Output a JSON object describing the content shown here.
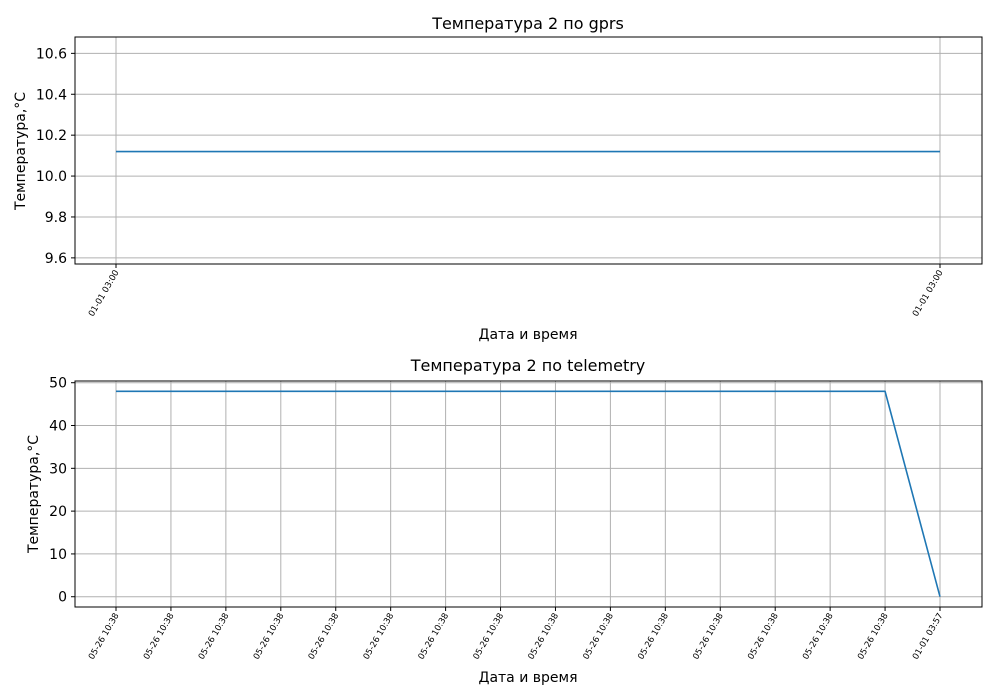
{
  "chart_data": [
    {
      "type": "line",
      "title": "Температура 2 по gprs",
      "xlabel": "Дата и время",
      "ylabel": "Температура,°C",
      "x": [
        "01-01 03:00",
        "01-01 03:00"
      ],
      "series": [
        {
          "values": [
            10.12,
            10.12
          ],
          "color": "#1f77b4"
        }
      ],
      "ylim": [
        9.57,
        10.68
      ],
      "yticks": [
        9.6,
        9.8,
        10.0,
        10.2,
        10.4,
        10.6
      ],
      "ytick_labels": [
        "9.6",
        "9.8",
        "10.0",
        "10.2",
        "10.4",
        "10.6"
      ],
      "grid": true,
      "legend": "none"
    },
    {
      "type": "line",
      "title": "Температура 2 по telemetry",
      "xlabel": "Дата и время",
      "ylabel": "Температура,°C",
      "x": [
        "05-26 10:38",
        "05-26 10:38",
        "05-26 10:38",
        "05-26 10:38",
        "05-26 10:38",
        "05-26 10:38",
        "05-26 10:38",
        "05-26 10:38",
        "05-26 10:38",
        "05-26 10:38",
        "05-26 10:38",
        "05-26 10:38",
        "05-26 10:38",
        "05-26 10:38",
        "05-26 10:38",
        "01-01 03:57"
      ],
      "series": [
        {
          "values": [
            48,
            48,
            48,
            48,
            48,
            48,
            48,
            48,
            48,
            48,
            48,
            48,
            48,
            48,
            48,
            0
          ],
          "color": "#1f77b4"
        }
      ],
      "ylim": [
        -2.4,
        50.4
      ],
      "yticks": [
        0,
        10,
        20,
        30,
        40,
        50
      ],
      "ytick_labels": [
        "0",
        "10",
        "20",
        "30",
        "40",
        "50"
      ],
      "grid": true,
      "legend": "none"
    }
  ]
}
